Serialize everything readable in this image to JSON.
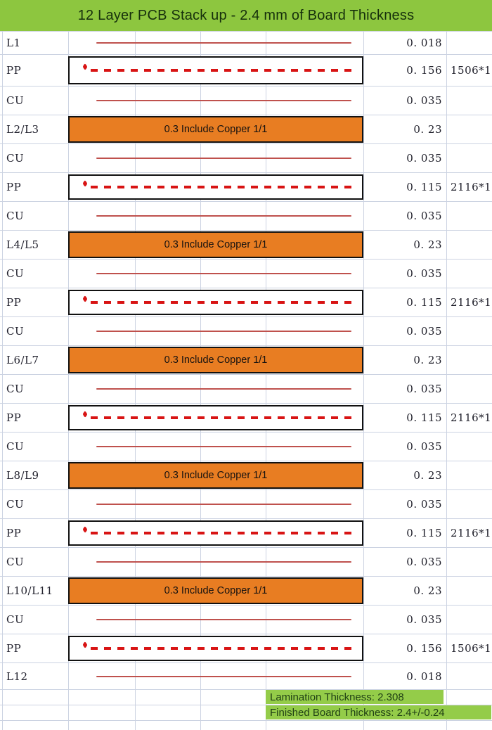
{
  "title": "12 Layer PCB Stack up - 2.4 mm of Board Thickness",
  "colors": {
    "header_green": "#8dc63f",
    "footer_green": "#94cc49",
    "core_orange": "#e87d22",
    "copper_red": "#bf514d",
    "pp_dash_red": "#d81414",
    "gridline": "#ccd3e2",
    "box_border": "#111111"
  },
  "rows": [
    {
      "type": "line",
      "label": "L1",
      "value": "0. 018",
      "extra": ""
    },
    {
      "type": "pp",
      "label": "PP",
      "value": "0. 156",
      "extra": "1506*1"
    },
    {
      "type": "line",
      "label": "CU",
      "value": "0. 035",
      "extra": ""
    },
    {
      "type": "core",
      "label": "L2/L3",
      "value": "0. 23",
      "extra": "",
      "content": "0.3 Include Copper 1/1"
    },
    {
      "type": "line",
      "label": "CU",
      "value": "0. 035",
      "extra": ""
    },
    {
      "type": "pp",
      "label": "PP",
      "value": "0. 115",
      "extra": "2116*1"
    },
    {
      "type": "line",
      "label": "CU",
      "value": "0. 035",
      "extra": ""
    },
    {
      "type": "core",
      "label": "L4/L5",
      "value": "0. 23",
      "extra": "",
      "content": "0.3 Include Copper 1/1"
    },
    {
      "type": "line",
      "label": "CU",
      "value": "0. 035",
      "extra": ""
    },
    {
      "type": "pp",
      "label": "PP",
      "value": "0. 115",
      "extra": "2116*1"
    },
    {
      "type": "line",
      "label": "CU",
      "value": "0. 035",
      "extra": ""
    },
    {
      "type": "core",
      "label": "L6/L7",
      "value": "0. 23",
      "extra": "",
      "content": "0.3 Include Copper 1/1"
    },
    {
      "type": "line",
      "label": "CU",
      "value": "0. 035",
      "extra": ""
    },
    {
      "type": "pp",
      "label": "PP",
      "value": "0. 115",
      "extra": "2116*1"
    },
    {
      "type": "line",
      "label": "CU",
      "value": "0. 035",
      "extra": ""
    },
    {
      "type": "core",
      "label": "L8/L9",
      "value": "0. 23",
      "extra": "",
      "content": "0.3 Include Copper 1/1"
    },
    {
      "type": "line",
      "label": "CU",
      "value": "0. 035",
      "extra": ""
    },
    {
      "type": "pp",
      "label": "PP",
      "value": "0. 115",
      "extra": "2116*1"
    },
    {
      "type": "line",
      "label": "CU",
      "value": "0. 035",
      "extra": ""
    },
    {
      "type": "core",
      "label": "L10/L11",
      "value": "0. 23",
      "extra": "",
      "content": "0.3 Include Copper 1/1"
    },
    {
      "type": "line",
      "label": "CU",
      "value": "0. 035",
      "extra": ""
    },
    {
      "type": "pp",
      "label": "PP",
      "value": "0. 156",
      "extra": "1506*1"
    },
    {
      "type": "line",
      "label": "L12",
      "value": "0. 018",
      "extra": ""
    }
  ],
  "footer": {
    "lamination": "Lamination Thickness: 2.308",
    "finished": "Finished Board Thickness: 2.4+/-0.24"
  }
}
